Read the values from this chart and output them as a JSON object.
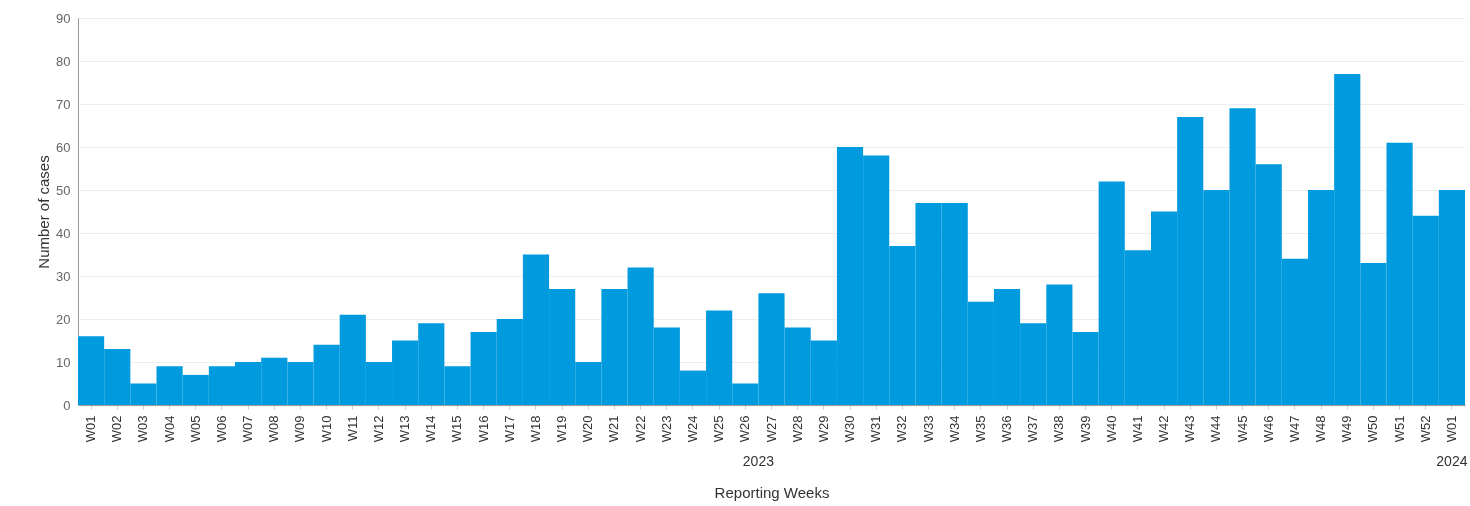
{
  "chart_data": {
    "type": "bar",
    "xlabel": "Reporting Weeks",
    "ylabel": "Number of cases",
    "categories": [
      "W01",
      "W02",
      "W03",
      "W04",
      "W05",
      "W06",
      "W07",
      "W08",
      "W09",
      "W10",
      "W11",
      "W12",
      "W13",
      "W14",
      "W15",
      "W16",
      "W17",
      "W18",
      "W19",
      "W20",
      "W21",
      "W22",
      "W23",
      "W24",
      "W25",
      "W26",
      "W27",
      "W28",
      "W29",
      "W30",
      "W31",
      "W32",
      "W33",
      "W34",
      "W35",
      "W36",
      "W37",
      "W38",
      "W39",
      "W40",
      "W41",
      "W42",
      "W43",
      "W44",
      "W45",
      "W46",
      "W47",
      "W48",
      "W49",
      "W50",
      "W51",
      "W52",
      "W01"
    ],
    "values": [
      16,
      13,
      5,
      9,
      7,
      9,
      10,
      11,
      10,
      14,
      21,
      10,
      15,
      19,
      9,
      17,
      20,
      35,
      27,
      10,
      27,
      32,
      18,
      8,
      22,
      5,
      26,
      18,
      15,
      60,
      58,
      37,
      47,
      47,
      24,
      27,
      19,
      28,
      17,
      52,
      36,
      45,
      67,
      50,
      69,
      56,
      34,
      50,
      77,
      33,
      61,
      44,
      50
    ],
    "color": "#009ade",
    "ylim": [
      0,
      90
    ],
    "yticks": [
      0,
      10,
      20,
      30,
      40,
      50,
      60,
      70,
      80,
      90
    ],
    "grid": "y",
    "annotations": [
      "2023",
      "2024"
    ]
  }
}
